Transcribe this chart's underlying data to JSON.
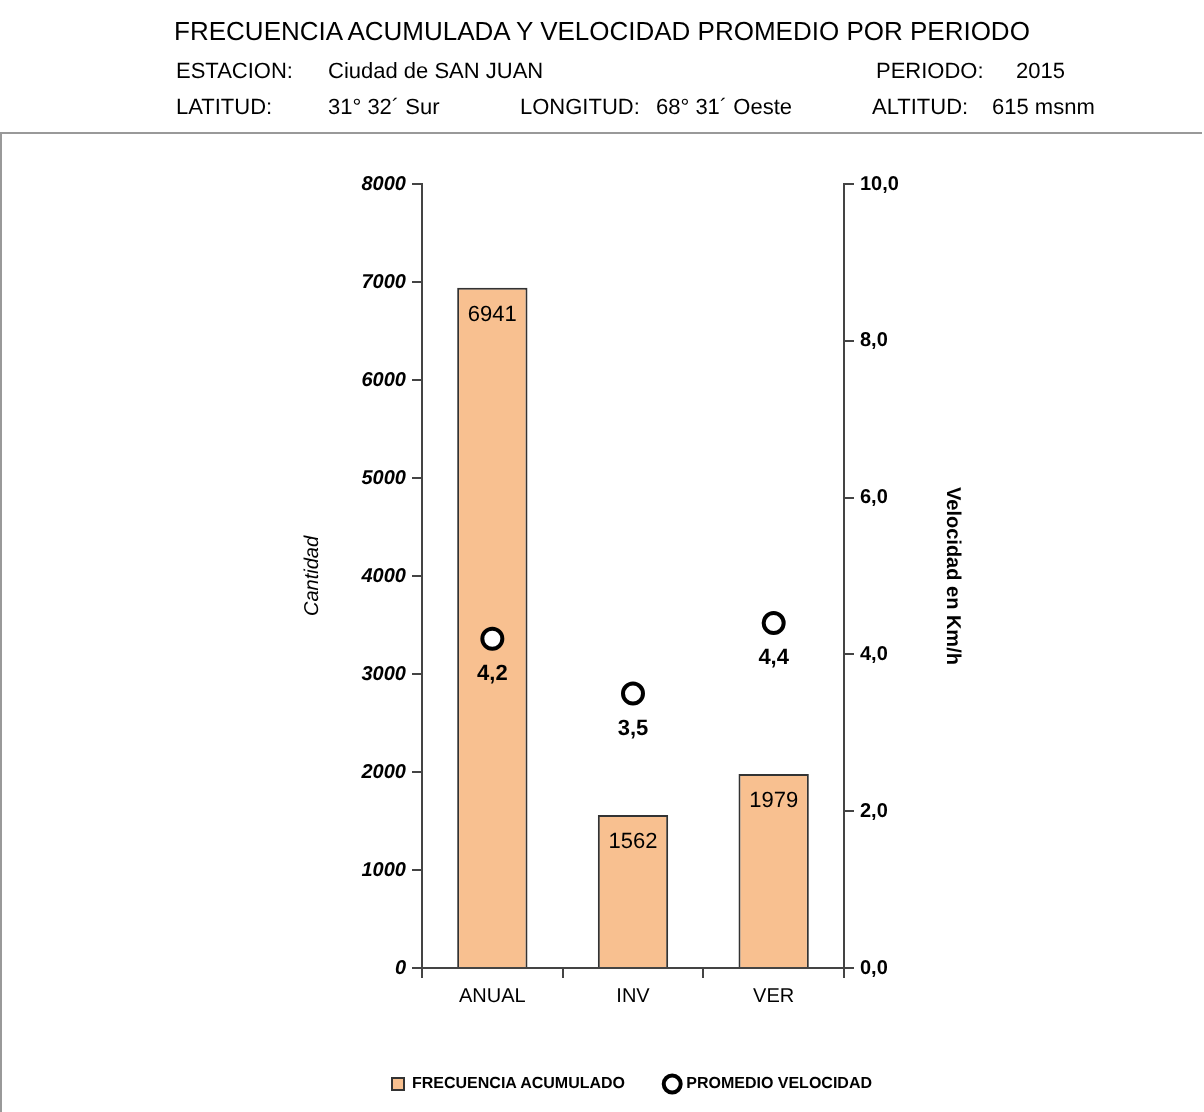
{
  "chart_data": {
    "type": "bar",
    "title": "FRECUENCIA ACUMULADA Y VELOCIDAD PROMEDIO POR PERIODO",
    "annotations": [
      "ESTACION:",
      "Ciudad de SAN JUAN",
      "PERIODO:",
      "2015",
      "LATITUD:",
      "31° 32´ Sur",
      "LONGITUD:",
      "68° 31´ Oeste",
      "ALTITUD:",
      "615 msnm"
    ],
    "categories": [
      "ANUAL",
      "INV",
      "VER"
    ],
    "ylabel": "Cantidad",
    "y2label": "Velocidad en Km/h",
    "ylim": [
      0,
      8000
    ],
    "yticks": [
      0,
      1000,
      2000,
      3000,
      4000,
      5000,
      6000,
      7000,
      8000
    ],
    "y2lim": [
      0,
      10
    ],
    "y2ticks": [
      {
        "value": 0,
        "label": "0,0"
      },
      {
        "value": 2,
        "label": "2,0"
      },
      {
        "value": 4,
        "label": "4,0"
      },
      {
        "value": 6,
        "label": "6,0"
      },
      {
        "value": 8,
        "label": "8,0"
      },
      {
        "value": 10,
        "label": "10,0"
      }
    ],
    "legend": "bottom",
    "marker": "circle",
    "series": [
      {
        "name": "FRECUENCIA ACUMULADO",
        "color": "#f8c090",
        "values": [
          6941,
          1562,
          1979
        ],
        "value_labels": [
          "6941",
          "1562",
          "1979"
        ]
      },
      {
        "name": "PROMEDIO VELOCIDAD",
        "type": "scatter",
        "axis": "y2",
        "color": "#ffffff",
        "values": [
          4.2,
          3.5,
          4.4
        ],
        "value_labels": [
          "4,2",
          "3,5",
          "4,4"
        ]
      }
    ]
  }
}
